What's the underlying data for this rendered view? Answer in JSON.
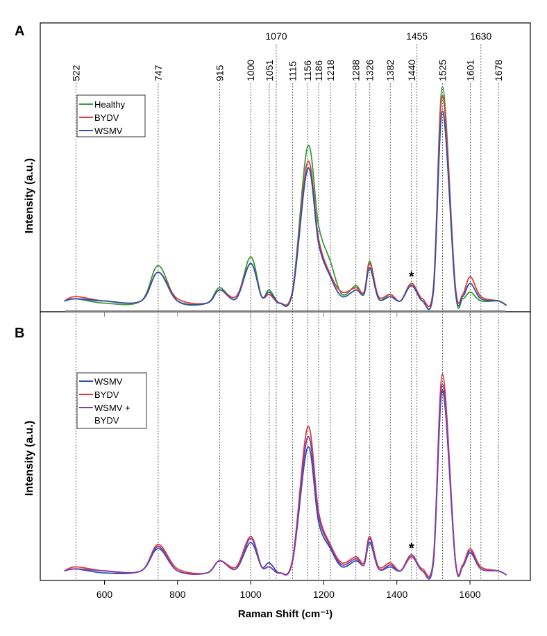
{
  "chart_data": [
    {
      "panel": "A",
      "type": "line",
      "xlabel": "",
      "ylabel": "Intensity (a.u.)",
      "xlim": [
        470,
        1700
      ],
      "xticks": [
        600,
        800,
        1000,
        1200,
        1400,
        1600
      ],
      "peak_markers_low": [
        522,
        747,
        915,
        1000,
        1051,
        1115,
        1156,
        1186,
        1218,
        1288,
        1326,
        1382,
        1440,
        1525,
        1601,
        1678
      ],
      "peak_markers_high": [
        1070,
        1455,
        1630
      ],
      "asterisk_at": 1440,
      "legend_position": "top-left",
      "series": [
        {
          "name": "Healthy",
          "color": "#3a9a3a",
          "x": [
            490,
            522,
            600,
            700,
            747,
            800,
            880,
            915,
            960,
            1000,
            1030,
            1051,
            1080,
            1115,
            1156,
            1186,
            1218,
            1250,
            1288,
            1310,
            1326,
            1350,
            1382,
            1410,
            1440,
            1470,
            1500,
            1525,
            1560,
            1580,
            1601,
            1630,
            1678,
            1700
          ],
          "y": [
            0.03,
            0.04,
            0.02,
            0.03,
            0.19,
            0.03,
            0.02,
            0.09,
            0.04,
            0.23,
            0.05,
            0.08,
            0.02,
            0.08,
            0.73,
            0.37,
            0.21,
            0.06,
            0.1,
            0.06,
            0.21,
            0.04,
            0.06,
            0.03,
            0.11,
            0.03,
            0.08,
            1.0,
            0.08,
            0.04,
            0.07,
            0.03,
            0.03,
            0.01
          ]
        },
        {
          "name": "BYDV",
          "color": "#e23b3b",
          "x": [
            490,
            522,
            600,
            700,
            747,
            800,
            880,
            915,
            960,
            1000,
            1030,
            1051,
            1080,
            1115,
            1156,
            1186,
            1218,
            1250,
            1288,
            1310,
            1326,
            1350,
            1382,
            1410,
            1440,
            1470,
            1500,
            1525,
            1560,
            1580,
            1601,
            1630,
            1678,
            1700
          ],
          "y": [
            0.03,
            0.05,
            0.03,
            0.03,
            0.16,
            0.04,
            0.02,
            0.08,
            0.05,
            0.2,
            0.05,
            0.06,
            0.02,
            0.08,
            0.66,
            0.31,
            0.15,
            0.07,
            0.09,
            0.07,
            0.2,
            0.05,
            0.06,
            0.03,
            0.11,
            0.04,
            0.09,
            0.96,
            0.1,
            0.06,
            0.14,
            0.05,
            0.03,
            0.01
          ]
        },
        {
          "name": "WSMV",
          "color": "#2f4fa8",
          "x": [
            490,
            522,
            600,
            700,
            747,
            800,
            880,
            915,
            960,
            1000,
            1030,
            1051,
            1080,
            1115,
            1156,
            1186,
            1218,
            1250,
            1288,
            1310,
            1326,
            1350,
            1382,
            1410,
            1440,
            1470,
            1500,
            1525,
            1560,
            1580,
            1601,
            1630,
            1678,
            1700
          ],
          "y": [
            0.03,
            0.04,
            0.03,
            0.03,
            0.16,
            0.03,
            0.02,
            0.08,
            0.04,
            0.2,
            0.05,
            0.07,
            0.02,
            0.07,
            0.63,
            0.29,
            0.14,
            0.05,
            0.08,
            0.06,
            0.18,
            0.04,
            0.05,
            0.03,
            0.1,
            0.03,
            0.07,
            0.89,
            0.08,
            0.05,
            0.11,
            0.04,
            0.03,
            0.01
          ]
        }
      ]
    },
    {
      "panel": "B",
      "type": "line",
      "xlabel": "Raman Shift (cm⁻¹)",
      "ylabel": "Intensity (a.u.)",
      "xlim": [
        470,
        1700
      ],
      "xticks": [
        600,
        800,
        1000,
        1200,
        1400,
        1600
      ],
      "asterisk_at": 1440,
      "legend_position": "top-left",
      "series": [
        {
          "name": "WSMV",
          "color": "#2f4fa8",
          "x": [
            490,
            522,
            600,
            700,
            747,
            800,
            880,
            915,
            960,
            1000,
            1030,
            1051,
            1080,
            1115,
            1156,
            1186,
            1218,
            1250,
            1288,
            1310,
            1326,
            1350,
            1382,
            1410,
            1440,
            1470,
            1500,
            1525,
            1560,
            1580,
            1601,
            1630,
            1678,
            1700
          ],
          "y": [
            0.03,
            0.04,
            0.02,
            0.03,
            0.14,
            0.03,
            0.02,
            0.08,
            0.04,
            0.17,
            0.05,
            0.07,
            0.02,
            0.08,
            0.64,
            0.27,
            0.14,
            0.05,
            0.08,
            0.06,
            0.17,
            0.04,
            0.05,
            0.03,
            0.1,
            0.03,
            0.07,
            0.92,
            0.08,
            0.05,
            0.12,
            0.04,
            0.03,
            0.01
          ]
        },
        {
          "name": "BYDV",
          "color": "#e23b3b",
          "x": [
            490,
            522,
            600,
            700,
            747,
            800,
            880,
            915,
            960,
            1000,
            1030,
            1051,
            1080,
            1115,
            1156,
            1186,
            1218,
            1250,
            1288,
            1310,
            1326,
            1350,
            1382,
            1410,
            1440,
            1470,
            1500,
            1525,
            1560,
            1580,
            1601,
            1630,
            1678,
            1700
          ],
          "y": [
            0.03,
            0.05,
            0.03,
            0.03,
            0.16,
            0.04,
            0.02,
            0.08,
            0.05,
            0.2,
            0.05,
            0.05,
            0.02,
            0.09,
            0.74,
            0.32,
            0.16,
            0.07,
            0.1,
            0.07,
            0.2,
            0.05,
            0.07,
            0.03,
            0.1,
            0.04,
            0.09,
            1.0,
            0.09,
            0.06,
            0.14,
            0.05,
            0.03,
            0.01
          ]
        },
        {
          "name": "WSMV + BYDV",
          "color": "#7b3fb0",
          "x": [
            490,
            522,
            600,
            700,
            747,
            800,
            880,
            915,
            960,
            1000,
            1030,
            1051,
            1080,
            1115,
            1156,
            1186,
            1218,
            1250,
            1288,
            1310,
            1326,
            1350,
            1382,
            1410,
            1440,
            1470,
            1500,
            1525,
            1560,
            1580,
            1601,
            1630,
            1678,
            1700
          ],
          "y": [
            0.03,
            0.04,
            0.03,
            0.03,
            0.15,
            0.03,
            0.02,
            0.08,
            0.04,
            0.19,
            0.05,
            0.05,
            0.02,
            0.08,
            0.69,
            0.3,
            0.15,
            0.06,
            0.09,
            0.06,
            0.19,
            0.04,
            0.06,
            0.03,
            0.11,
            0.03,
            0.08,
            0.95,
            0.08,
            0.05,
            0.13,
            0.04,
            0.03,
            0.01
          ]
        }
      ]
    }
  ],
  "legend_labels": {
    "a": [
      "Healthy",
      "BYDV",
      "WSMV"
    ],
    "b": [
      "WSMV",
      "BYDV",
      "WSMV +",
      "BYDV"
    ]
  },
  "panel_letters": {
    "a": "A",
    "b": "B"
  },
  "asterisk": "*"
}
